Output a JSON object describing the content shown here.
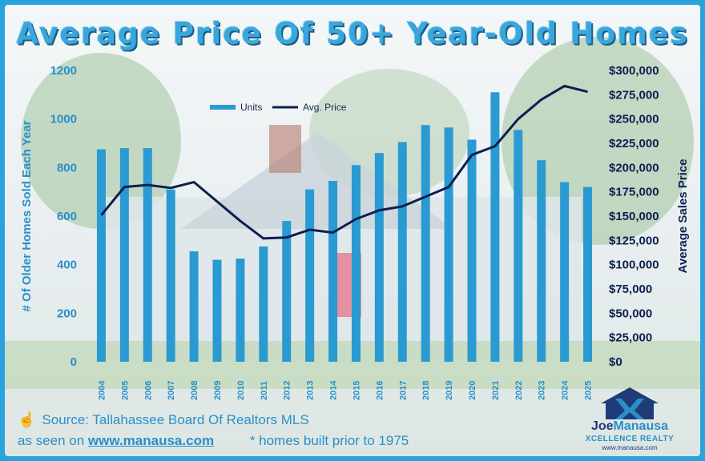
{
  "title": "Average Price Of 50+ Year-Old Homes",
  "footer": {
    "source": "Source: Tallahassee Board Of Realtors MLS",
    "seen_on_prefix": "as seen on",
    "site": "www.manausa.com",
    "note": "* homes built prior to 1975"
  },
  "logo": {
    "name_part1": "Joe",
    "name_part2": "Manausa",
    "sub": "XCELLENCE REALTY",
    "url": "www.manausa.com"
  },
  "colors": {
    "bars": "#2a9ad2",
    "line": "#0d1f4f",
    "title": "#3aa7dc"
  },
  "chart_data": {
    "type": "bar",
    "categories": [
      "2004",
      "2005",
      "2006",
      "2007",
      "2008",
      "2009",
      "2010",
      "2011",
      "2012",
      "2013",
      "2014",
      "2015",
      "2016",
      "2017",
      "2018",
      "2019",
      "2020",
      "2021",
      "2022",
      "2023",
      "2024",
      "2025"
    ],
    "series": [
      {
        "name": "Units",
        "type": "bar",
        "axis": "left",
        "values": [
          875,
          880,
          880,
          710,
          455,
          420,
          425,
          475,
          580,
          710,
          745,
          810,
          860,
          905,
          975,
          965,
          915,
          1110,
          955,
          830,
          740,
          720
        ]
      },
      {
        "name": "Avg. Price",
        "type": "line",
        "axis": "right",
        "values": [
          151000,
          180000,
          182000,
          179000,
          185000,
          165000,
          145000,
          127000,
          128000,
          136000,
          133000,
          147000,
          156000,
          160000,
          170000,
          180000,
          213000,
          222000,
          250000,
          270000,
          284000,
          278000
        ]
      }
    ],
    "ylabel_left": "# Of Older Homes Sold Each Year",
    "ylabel_right": "Average Sales Price",
    "ylim_left": [
      0,
      1200
    ],
    "ylim_right": [
      0,
      300000
    ],
    "yticks_left": [
      "0",
      "200",
      "400",
      "600",
      "800",
      "1000",
      "1200"
    ],
    "yticks_right": [
      "$0",
      "$25,000",
      "$50,000",
      "$75,000",
      "$100,000",
      "$125,000",
      "$150,000",
      "$175,000",
      "$200,000",
      "$225,000",
      "$250,000",
      "$275,000",
      "$300,000"
    ],
    "legend": "top-left",
    "grid": false
  }
}
